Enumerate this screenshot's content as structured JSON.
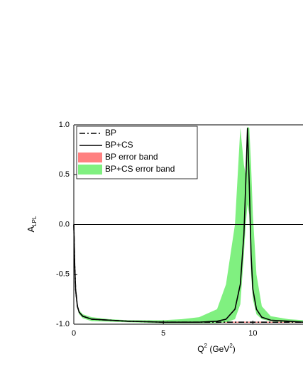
{
  "chart_data": {
    "type": "line",
    "x": [
      0,
      0.05,
      0.1,
      0.2,
      0.3,
      0.5,
      1,
      2,
      3,
      4,
      5,
      6,
      7,
      8,
      8.5,
      9,
      9.3,
      9.5,
      9.6,
      9.7,
      9.8,
      9.9,
      10,
      10.2,
      10.5,
      11,
      12,
      12.8
    ],
    "series": [
      {
        "name": "BP",
        "color": "#000000",
        "style": "dashdot",
        "values": [
          0,
          -0.4,
          -0.65,
          -0.82,
          -0.88,
          -0.92,
          -0.95,
          -0.96,
          -0.97,
          -0.975,
          -0.98,
          -0.98,
          -0.98,
          -0.98,
          -0.98,
          -0.98,
          -0.98,
          -0.98,
          -0.98,
          -0.98,
          -0.98,
          -0.98,
          -0.98,
          -0.98,
          -0.98,
          -0.98,
          -0.98,
          -0.98
        ]
      },
      {
        "name": "BP+CS",
        "color": "#000000",
        "style": "solid",
        "values": [
          0,
          -0.4,
          -0.65,
          -0.82,
          -0.88,
          -0.92,
          -0.95,
          -0.96,
          -0.97,
          -0.975,
          -0.98,
          -0.98,
          -0.98,
          -0.97,
          -0.95,
          -0.85,
          -0.6,
          -0.1,
          0.4,
          0.97,
          0.4,
          -0.3,
          -0.65,
          -0.85,
          -0.93,
          -0.96,
          -0.97,
          -0.98
        ]
      },
      {
        "name": "BP error band",
        "color": "#ff8080",
        "style": "band",
        "upper": [
          0,
          -0.39,
          -0.64,
          -0.81,
          -0.87,
          -0.91,
          -0.94,
          -0.955,
          -0.965,
          -0.97,
          -0.975,
          -0.975,
          -0.975,
          -0.975,
          -0.975,
          -0.975,
          -0.975,
          -0.975,
          -0.975,
          -0.975,
          -0.975,
          -0.975,
          -0.975,
          -0.975,
          -0.975,
          -0.975,
          -0.975,
          -0.975
        ],
        "lower": [
          0,
          -0.41,
          -0.66,
          -0.83,
          -0.89,
          -0.93,
          -0.96,
          -0.965,
          -0.975,
          -0.98,
          -0.985,
          -0.985,
          -0.985,
          -0.985,
          -0.985,
          -0.985,
          -0.985,
          -0.985,
          -0.985,
          -0.985,
          -0.985,
          -0.985,
          -0.985,
          -0.985,
          -0.985,
          -0.985,
          -0.985,
          -0.985
        ]
      },
      {
        "name": "BP+CS error band",
        "color": "#80f080",
        "style": "band",
        "upper": [
          0,
          -0.38,
          -0.63,
          -0.8,
          -0.86,
          -0.9,
          -0.93,
          -0.95,
          -0.96,
          -0.96,
          -0.96,
          -0.95,
          -0.93,
          -0.85,
          -0.6,
          0,
          0.97,
          0.6,
          0.5,
          0.98,
          0.97,
          0.6,
          0.1,
          -0.5,
          -0.82,
          -0.92,
          -0.95,
          -0.96
        ],
        "lower": [
          0,
          -0.42,
          -0.67,
          -0.84,
          -0.9,
          -0.94,
          -0.97,
          -0.975,
          -0.98,
          -0.985,
          -0.99,
          -0.99,
          -0.99,
          -0.99,
          -0.98,
          -0.95,
          -0.8,
          -0.3,
          0,
          0.2,
          0.1,
          -0.5,
          -0.75,
          -0.9,
          -0.95,
          -0.97,
          -0.98,
          -0.985
        ]
      }
    ],
    "xlim": [
      0,
      12.8
    ],
    "ylim": [
      -1,
      1
    ],
    "xticks": [
      0,
      5,
      10
    ],
    "yticks": [
      {
        "value": -1,
        "label": "-1.0"
      },
      {
        "value": -0.5,
        "label": "-0.5"
      },
      {
        "value": 0,
        "label": "0.0"
      },
      {
        "value": 0.5,
        "label": "0.5"
      },
      {
        "value": 1,
        "label": "1.0"
      }
    ],
    "hline": 0,
    "xlabel": [
      "Q",
      "2",
      " (GeV",
      "2",
      ")"
    ],
    "ylabel": [
      "A",
      "LPL"
    ],
    "legend": "upper left"
  }
}
